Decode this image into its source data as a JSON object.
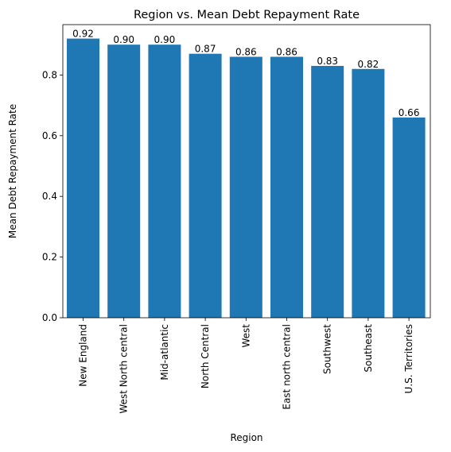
{
  "chart_data": {
    "type": "bar",
    "title": "Region vs. Mean Debt Repayment Rate",
    "xlabel": "Region",
    "ylabel": "Mean Debt Repayment Rate",
    "categories": [
      "New England",
      "West North central",
      "Mid-atlantic",
      "North Central",
      "West",
      "East north central",
      "Southwest",
      "Southeast",
      "U.S. Territories"
    ],
    "values": [
      0.92,
      0.9,
      0.9,
      0.87,
      0.86,
      0.86,
      0.83,
      0.82,
      0.66
    ],
    "value_labels": [
      "0.92",
      "0.90",
      "0.90",
      "0.87",
      "0.86",
      "0.86",
      "0.83",
      "0.82",
      "0.66"
    ],
    "yticks": [
      0.0,
      0.2,
      0.4,
      0.6,
      0.8
    ],
    "ytick_labels": [
      "0.0",
      "0.2",
      "0.4",
      "0.6",
      "0.8"
    ],
    "ylim": [
      0,
      0.966
    ],
    "bar_color": "#1f77b4",
    "grid": false,
    "legend": "none"
  }
}
